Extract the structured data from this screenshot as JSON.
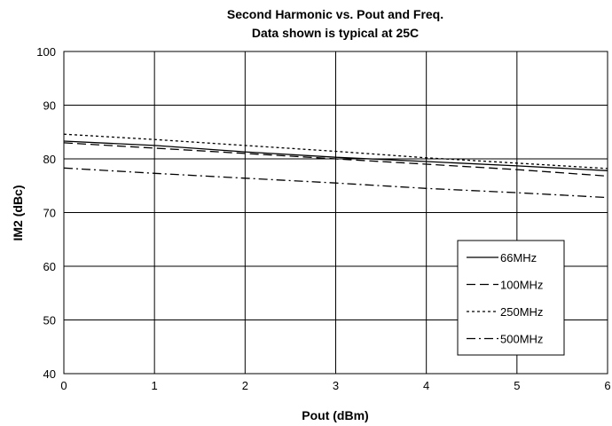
{
  "chart_data": {
    "type": "line",
    "title": "Second Harmonic vs. Pout and Freq.",
    "subtitle": "Data shown is typical at 25C",
    "xlabel": "Pout (dBm)",
    "ylabel": "IM2 (dBc)",
    "xlim": [
      0,
      6
    ],
    "ylim": [
      40,
      100
    ],
    "x_ticks": [
      0,
      1,
      2,
      3,
      4,
      5,
      6
    ],
    "y_ticks": [
      40,
      50,
      60,
      70,
      80,
      90,
      100
    ],
    "grid": true,
    "legend_position": "bottom-right",
    "x": [
      0,
      1,
      2,
      3,
      4,
      5,
      6
    ],
    "series": [
      {
        "name": "66MHz",
        "style": "solid",
        "color": "#000000",
        "values": [
          83.3,
          82.5,
          81.3,
          80.3,
          79.5,
          78.7,
          77.8
        ]
      },
      {
        "name": "100MHz",
        "style": "dashed",
        "color": "#000000",
        "values": [
          83.0,
          82.0,
          81.0,
          80.0,
          79.0,
          78.0,
          76.8
        ]
      },
      {
        "name": "250MHz",
        "style": "dotted",
        "color": "#000000",
        "values": [
          84.6,
          83.6,
          82.5,
          81.4,
          80.2,
          79.2,
          78.2
        ]
      },
      {
        "name": "500MHz",
        "style": "dashdot",
        "color": "#000000",
        "values": [
          78.3,
          77.3,
          76.4,
          75.5,
          74.5,
          73.7,
          72.8
        ]
      }
    ]
  }
}
